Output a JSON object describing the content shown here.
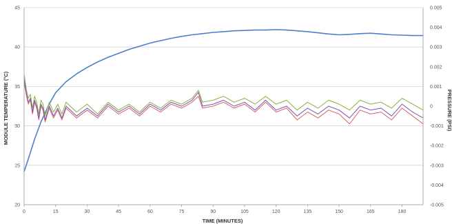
{
  "chart_data": {
    "type": "line",
    "title": "",
    "xlabel": "TIME (MINUTES)",
    "ylabel": "MODULE TEMPERATURE (°C)",
    "y2label": "PRESSURE (PSI)",
    "xlim": [
      0,
      190
    ],
    "ylim": [
      20,
      45
    ],
    "y2lim": [
      -0.005,
      0.005
    ],
    "x_ticks": [
      0,
      15,
      30,
      45,
      60,
      75,
      90,
      105,
      120,
      135,
      150,
      165,
      180
    ],
    "y_ticks": [
      20,
      25,
      30,
      35,
      40,
      45
    ],
    "y2_ticks": [
      {
        "value": 0.005,
        "label": "0.005"
      },
      {
        "value": 0.004,
        "label": "0.004"
      },
      {
        "value": 0.003,
        "label": "0.003"
      },
      {
        "value": 0.002,
        "label": "0.002"
      },
      {
        "value": 0.001,
        "label": "0.001"
      },
      {
        "value": 0,
        "label": "0"
      },
      {
        "value": -0.001,
        "label": "-0.001"
      },
      {
        "value": -0.002,
        "label": "-0.002"
      },
      {
        "value": -0.003,
        "label": "-0.003"
      },
      {
        "value": -0.004,
        "label": "-0.004"
      },
      {
        "value": -0.005,
        "label": "-0.005"
      }
    ],
    "grid": true,
    "legend": "none",
    "series": [
      {
        "axis": "left",
        "color": "#4a7fc9",
        "x": [
          0,
          2,
          5,
          8,
          12,
          15,
          20,
          25,
          30,
          35,
          40,
          45,
          50,
          55,
          60,
          65,
          70,
          75,
          80,
          85,
          90,
          95,
          100,
          105,
          110,
          115,
          120,
          125,
          130,
          135,
          140,
          145,
          150,
          155,
          160,
          165,
          170,
          175,
          180,
          185,
          190
        ],
        "values": [
          24.2,
          25.8,
          28.3,
          30.5,
          32.8,
          34.2,
          35.6,
          36.6,
          37.4,
          38.1,
          38.7,
          39.2,
          39.7,
          40.1,
          40.5,
          40.8,
          41.1,
          41.35,
          41.55,
          41.7,
          41.85,
          41.95,
          42.05,
          42.1,
          42.15,
          42.15,
          42.2,
          42.15,
          42.05,
          41.95,
          41.8,
          41.65,
          41.55,
          41.6,
          41.7,
          41.75,
          41.65,
          41.55,
          41.5,
          41.45,
          41.45
        ]
      },
      {
        "axis": "right",
        "color": "#8cb040",
        "x": [
          0,
          1,
          2,
          3,
          4,
          5,
          6,
          7,
          8,
          9,
          10,
          12,
          14,
          16,
          18,
          20,
          25,
          30,
          35,
          40,
          45,
          50,
          55,
          60,
          65,
          70,
          75,
          80,
          83,
          85,
          90,
          95,
          100,
          105,
          110,
          115,
          120,
          125,
          130,
          135,
          140,
          145,
          150,
          155,
          160,
          165,
          170,
          175,
          180,
          185,
          190
        ],
        "values": [
          0.0016,
          0.0009,
          0.0004,
          0.0006,
          -0.0001,
          0.0005,
          0.0002,
          -0.0004,
          0.0003,
          0.0001,
          -0.0005,
          0.0002,
          -0.0003,
          0.0001,
          -0.0004,
          0.0002,
          -0.0003,
          0.0001,
          -0.0004,
          0.0002,
          -0.0002,
          0.0001,
          -0.0003,
          0.0002,
          -0.0001,
          0.0003,
          0.0001,
          0.0004,
          0.0008,
          0.0002,
          0.0003,
          0.0005,
          0.0002,
          0.0004,
          0.0001,
          0.0005,
          0.0001,
          0.0003,
          -0.0002,
          0.0002,
          -0.0001,
          0.0003,
          0.0001,
          -0.0002,
          0.0003,
          0.0001,
          0.0002,
          -0.0001,
          0.0004,
          0.0001,
          -0.0002
        ]
      },
      {
        "axis": "right",
        "color": "#d9606a",
        "x": [
          0,
          1,
          2,
          3,
          4,
          5,
          6,
          7,
          8,
          9,
          10,
          12,
          14,
          16,
          18,
          20,
          25,
          30,
          35,
          40,
          45,
          50,
          55,
          60,
          65,
          70,
          75,
          80,
          83,
          85,
          90,
          95,
          100,
          105,
          110,
          115,
          120,
          125,
          130,
          135,
          140,
          145,
          150,
          155,
          160,
          165,
          170,
          175,
          180,
          185,
          190
        ],
        "values": [
          0.0012,
          0.0006,
          0.0001,
          0.0003,
          -0.0004,
          0.0002,
          -0.0001,
          -0.0007,
          0.0,
          -0.0002,
          -0.0008,
          -0.0001,
          -0.0006,
          -0.0002,
          -0.0007,
          -0.0001,
          -0.0006,
          -0.0002,
          -0.0006,
          0.0,
          -0.0004,
          -0.0001,
          -0.0005,
          0.0,
          -0.0003,
          0.0001,
          -0.0001,
          0.0002,
          0.0005,
          -0.0001,
          0.0,
          0.0002,
          -0.0001,
          0.0001,
          -0.0003,
          0.0002,
          -0.0003,
          -0.0001,
          -0.0007,
          -0.0003,
          -0.0006,
          -0.0002,
          -0.0004,
          -0.0009,
          -0.0002,
          -0.0004,
          -0.0003,
          -0.0007,
          -0.0001,
          -0.0005,
          -0.0009
        ]
      },
      {
        "axis": "right",
        "color": "#7a52b3",
        "x": [
          0,
          1,
          2,
          3,
          4,
          5,
          6,
          7,
          8,
          9,
          10,
          12,
          14,
          16,
          18,
          20,
          25,
          30,
          35,
          40,
          45,
          50,
          55,
          60,
          65,
          70,
          75,
          80,
          83,
          85,
          90,
          95,
          100,
          105,
          110,
          115,
          120,
          125,
          130,
          135,
          140,
          145,
          150,
          155,
          160,
          165,
          170,
          175,
          180,
          185,
          190
        ],
        "values": [
          0.0014,
          0.0007,
          0.0002,
          0.0004,
          -0.0003,
          0.0003,
          0.0,
          -0.0006,
          0.0001,
          -0.0001,
          -0.0007,
          0.0,
          -0.0005,
          -0.0001,
          -0.0006,
          0.0,
          -0.0005,
          -0.0001,
          -0.0005,
          0.0001,
          -0.0003,
          0.0,
          -0.0004,
          0.0001,
          -0.0002,
          0.0002,
          0.0,
          0.0003,
          0.0007,
          0.0,
          0.0001,
          0.0003,
          0.0,
          0.0002,
          -0.0002,
          0.0003,
          -0.0002,
          0.0,
          -0.0005,
          -0.0001,
          -0.0004,
          0.0,
          -0.0002,
          -0.0006,
          0.0,
          -0.0002,
          -0.0001,
          -0.0005,
          0.0001,
          -0.0003,
          -0.0006
        ]
      }
    ]
  }
}
